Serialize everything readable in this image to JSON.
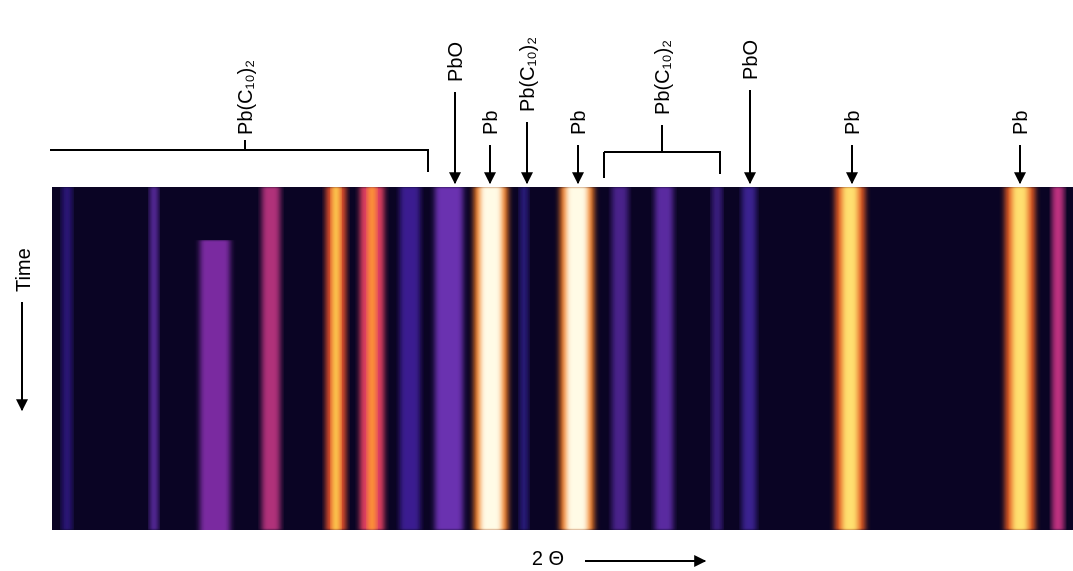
{
  "figure": {
    "annotations": [
      {
        "label": "Pb(C₁₀)₂"
      },
      {
        "label": "PbO"
      },
      {
        "label": "Pb"
      },
      {
        "label": "Pb(C₁₀)₂"
      },
      {
        "label": "Pb"
      },
      {
        "label": "Pb(C₁₀)₂"
      },
      {
        "label": "PbO"
      },
      {
        "label": "Pb"
      },
      {
        "label": "Pb"
      }
    ],
    "x_label": "2 Θ",
    "y_label": "Time"
  }
}
